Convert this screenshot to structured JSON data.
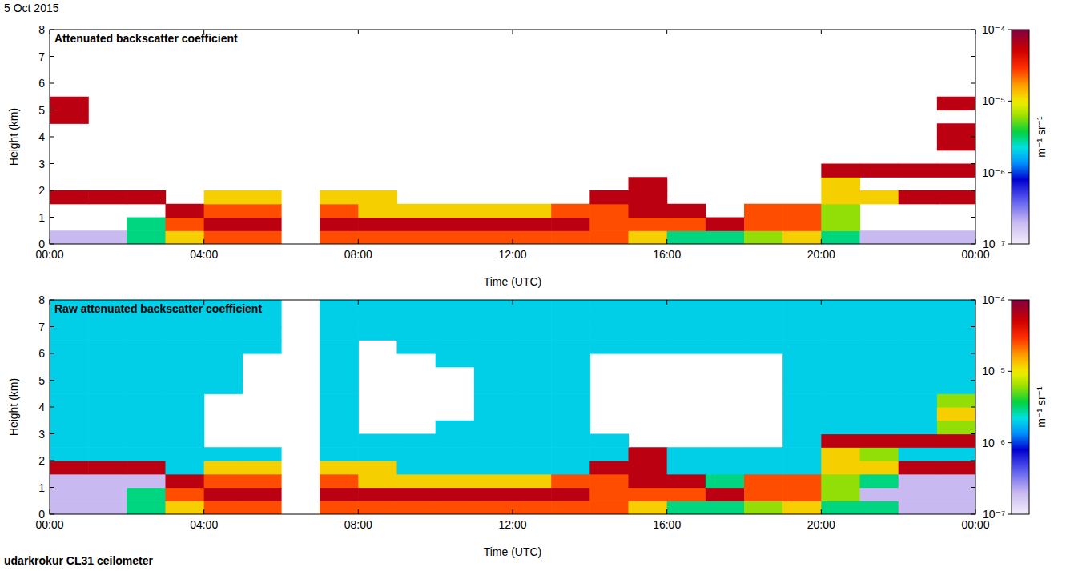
{
  "date": "5 Oct 2015",
  "station": "udarkrokur CL31 ceilometer",
  "chart_data": [
    {
      "type": "heatmap",
      "title": "Attenuated backscatter coefficient",
      "xlabel": "Time (UTC)",
      "ylabel": "Height (km)",
      "xlim": [
        0,
        24
      ],
      "xticks": [
        {
          "value": 0,
          "label": "00:00"
        },
        {
          "value": 4,
          "label": "04:00"
        },
        {
          "value": 8,
          "label": "08:00"
        },
        {
          "value": 12,
          "label": "12:00"
        },
        {
          "value": 16,
          "label": "16:00"
        },
        {
          "value": 20,
          "label": "20:00"
        },
        {
          "value": 24,
          "label": "00:00"
        }
      ],
      "ylim": [
        0,
        8
      ],
      "yticks": [
        0,
        1,
        2,
        3,
        4,
        5,
        6,
        7,
        8
      ],
      "colorbar": {
        "label": "m⁻¹ sr⁻¹",
        "log": true,
        "lim": [
          1e-07,
          0.0001
        ],
        "ticks": [
          {
            "value": 1e-07,
            "label": "10⁻⁷"
          },
          {
            "value": 1e-06,
            "label": "10⁻⁶"
          },
          {
            "value": 1e-05,
            "label": "10⁻⁵"
          },
          {
            "value": 0.0001,
            "label": "10⁻⁴"
          }
        ]
      },
      "x_bins": [
        0,
        1,
        2,
        3,
        4,
        5,
        6,
        7,
        8,
        9,
        10,
        11,
        12,
        13,
        14,
        15,
        16,
        17,
        18,
        19,
        20,
        21,
        22,
        23,
        24
      ],
      "y_bins": [
        0,
        0.5,
        1,
        1.5,
        2,
        2.5,
        3,
        3.5,
        4,
        4.5,
        5,
        5.5,
        6,
        6.5,
        7,
        7.5,
        8
      ],
      "cells": [
        [
          2e-07,
          2e-07,
          3e-06,
          1.2e-05,
          2.5e-05,
          2.5e-05,
          null,
          2.5e-05,
          2.5e-05,
          2.5e-05,
          2.5e-05,
          2.5e-05,
          2.5e-05,
          2.5e-05,
          2.5e-05,
          1.2e-05,
          3e-06,
          3e-06,
          6e-06,
          1.2e-05,
          3e-06,
          2e-07,
          2e-07,
          2e-07
        ],
        [
          null,
          null,
          3e-06,
          2.5e-05,
          6e-05,
          6e-05,
          null,
          6e-05,
          6e-05,
          6e-05,
          6e-05,
          6e-05,
          6e-05,
          6e-05,
          2.5e-05,
          2.5e-05,
          2.5e-05,
          6e-05,
          2.5e-05,
          2.5e-05,
          6e-06,
          null,
          null,
          null
        ],
        [
          null,
          null,
          null,
          6e-05,
          2.5e-05,
          2.5e-05,
          null,
          2.5e-05,
          1.2e-05,
          1.2e-05,
          1.2e-05,
          1.2e-05,
          1.2e-05,
          2.5e-05,
          2.5e-05,
          6e-05,
          6e-05,
          null,
          2.5e-05,
          2.5e-05,
          6e-06,
          null,
          null,
          null
        ],
        [
          6e-05,
          6e-05,
          6e-05,
          null,
          1.2e-05,
          1.2e-05,
          null,
          1.2e-05,
          1.2e-05,
          null,
          null,
          null,
          null,
          null,
          6e-05,
          6e-05,
          null,
          null,
          null,
          null,
          1.2e-05,
          1.2e-05,
          6e-05,
          6e-05
        ],
        [
          null,
          null,
          null,
          null,
          null,
          null,
          null,
          null,
          null,
          null,
          null,
          null,
          null,
          null,
          null,
          6e-05,
          null,
          null,
          null,
          null,
          1.2e-05,
          null,
          null,
          null
        ],
        [
          null,
          null,
          null,
          null,
          null,
          null,
          null,
          null,
          null,
          null,
          null,
          null,
          null,
          null,
          null,
          null,
          null,
          null,
          null,
          null,
          6e-05,
          6e-05,
          6e-05,
          6e-05
        ],
        [
          null,
          null,
          null,
          null,
          null,
          null,
          null,
          null,
          null,
          null,
          null,
          null,
          null,
          null,
          null,
          null,
          null,
          null,
          null,
          null,
          null,
          null,
          null,
          null
        ],
        [
          null,
          null,
          null,
          null,
          null,
          null,
          null,
          null,
          null,
          null,
          null,
          null,
          null,
          null,
          null,
          null,
          null,
          null,
          null,
          null,
          null,
          null,
          null,
          6e-05
        ],
        [
          null,
          null,
          null,
          null,
          null,
          null,
          null,
          null,
          null,
          null,
          null,
          null,
          null,
          null,
          null,
          null,
          null,
          null,
          null,
          null,
          null,
          null,
          null,
          6e-05
        ],
        [
          6e-05,
          null,
          null,
          null,
          null,
          null,
          null,
          null,
          null,
          null,
          null,
          null,
          null,
          null,
          null,
          null,
          null,
          null,
          null,
          null,
          null,
          null,
          null,
          null
        ],
        [
          6e-05,
          null,
          null,
          null,
          null,
          null,
          null,
          null,
          null,
          null,
          null,
          null,
          null,
          null,
          null,
          null,
          null,
          null,
          null,
          null,
          null,
          null,
          null,
          6e-05
        ],
        [
          null,
          null,
          null,
          null,
          null,
          null,
          null,
          null,
          null,
          null,
          null,
          null,
          null,
          null,
          null,
          null,
          null,
          null,
          null,
          null,
          null,
          null,
          null,
          null
        ],
        [
          null,
          null,
          null,
          null,
          null,
          null,
          null,
          null,
          null,
          null,
          null,
          null,
          null,
          null,
          null,
          null,
          null,
          null,
          null,
          null,
          null,
          null,
          null,
          null
        ],
        [
          null,
          null,
          null,
          null,
          null,
          null,
          null,
          null,
          null,
          null,
          null,
          null,
          null,
          null,
          null,
          null,
          null,
          null,
          null,
          null,
          null,
          null,
          null,
          null
        ],
        [
          null,
          null,
          null,
          null,
          null,
          null,
          null,
          null,
          null,
          null,
          null,
          null,
          null,
          null,
          null,
          null,
          null,
          null,
          null,
          null,
          null,
          null,
          null,
          null
        ],
        [
          null,
          null,
          null,
          null,
          null,
          null,
          null,
          null,
          null,
          null,
          null,
          null,
          null,
          null,
          null,
          null,
          null,
          null,
          null,
          null,
          null,
          null,
          null,
          null
        ]
      ]
    },
    {
      "type": "heatmap",
      "title": "Raw attenuated backscatter coefficient",
      "xlabel": "Time (UTC)",
      "ylabel": "Height (km)",
      "xlim": [
        0,
        24
      ],
      "xticks": [
        {
          "value": 0,
          "label": "00:00"
        },
        {
          "value": 4,
          "label": "04:00"
        },
        {
          "value": 8,
          "label": "08:00"
        },
        {
          "value": 12,
          "label": "12:00"
        },
        {
          "value": 16,
          "label": "16:00"
        },
        {
          "value": 20,
          "label": "20:00"
        },
        {
          "value": 24,
          "label": "00:00"
        }
      ],
      "ylim": [
        0,
        8
      ],
      "yticks": [
        0,
        1,
        2,
        3,
        4,
        5,
        6,
        7,
        8
      ],
      "colorbar": {
        "label": "m⁻¹ sr⁻¹",
        "log": true,
        "lim": [
          1e-07,
          0.0001
        ],
        "ticks": [
          {
            "value": 1e-07,
            "label": "10⁻⁷"
          },
          {
            "value": 1e-06,
            "label": "10⁻⁶"
          },
          {
            "value": 1e-05,
            "label": "10⁻⁵"
          },
          {
            "value": 0.0001,
            "label": "10⁻⁴"
          }
        ]
      },
      "x_bins": [
        0,
        1,
        2,
        3,
        4,
        5,
        6,
        7,
        8,
        9,
        10,
        11,
        12,
        13,
        14,
        15,
        16,
        17,
        18,
        19,
        20,
        21,
        22,
        23,
        24
      ],
      "y_bins": [
        0,
        0.5,
        1,
        1.5,
        2,
        2.5,
        3,
        3.5,
        4,
        4.5,
        5,
        5.5,
        6,
        6.5,
        7,
        7.5,
        8
      ],
      "cells": [
        [
          2e-07,
          2e-07,
          3e-06,
          1.2e-05,
          2.5e-05,
          2.5e-05,
          null,
          2.5e-05,
          2.5e-05,
          2.5e-05,
          2.5e-05,
          2.5e-05,
          2.5e-05,
          2.5e-05,
          2.5e-05,
          1.2e-05,
          3e-06,
          3e-06,
          6e-06,
          1.2e-05,
          3e-06,
          3e-06,
          2e-07,
          2e-07
        ],
        [
          2e-07,
          2e-07,
          3e-06,
          2.5e-05,
          6e-05,
          6e-05,
          null,
          6e-05,
          6e-05,
          6e-05,
          6e-05,
          6e-05,
          6e-05,
          6e-05,
          2.5e-05,
          2.5e-05,
          2.5e-05,
          6e-05,
          2.5e-05,
          2.5e-05,
          6e-06,
          2e-07,
          2e-07,
          2e-07
        ],
        [
          2e-07,
          2e-07,
          2e-07,
          6e-05,
          2.5e-05,
          2.5e-05,
          null,
          2.5e-05,
          1.2e-05,
          1.2e-05,
          1.2e-05,
          1.2e-05,
          1.2e-05,
          2.5e-05,
          2.5e-05,
          6e-05,
          6e-05,
          3e-06,
          2.5e-05,
          2.5e-05,
          6e-06,
          3e-06,
          2e-07,
          2e-07
        ],
        [
          6e-05,
          6e-05,
          6e-05,
          2e-06,
          1.2e-05,
          1.2e-05,
          null,
          1.2e-05,
          1.2e-05,
          2e-06,
          2e-06,
          2e-06,
          2e-06,
          2e-06,
          6e-05,
          6e-05,
          2e-06,
          2e-06,
          2e-06,
          2e-06,
          1.2e-05,
          1.2e-05,
          6e-05,
          6e-05
        ],
        [
          2e-06,
          2e-06,
          2e-06,
          2e-06,
          2e-06,
          2e-06,
          null,
          2e-06,
          2e-06,
          2e-06,
          2e-06,
          2e-06,
          2e-06,
          2e-06,
          2e-06,
          6e-05,
          2e-06,
          2e-06,
          2e-06,
          2e-06,
          1.2e-05,
          6e-06,
          2e-06,
          2e-06
        ],
        [
          2e-06,
          2e-06,
          2e-06,
          2e-06,
          null,
          null,
          null,
          2e-06,
          2e-06,
          2e-06,
          2e-06,
          2e-06,
          2e-06,
          2e-06,
          2e-06,
          null,
          null,
          null,
          null,
          2e-06,
          6e-05,
          6e-05,
          6e-05,
          6e-05
        ],
        [
          2e-06,
          2e-06,
          2e-06,
          2e-06,
          null,
          null,
          null,
          2e-06,
          null,
          null,
          2e-06,
          2e-06,
          2e-06,
          2e-06,
          null,
          null,
          null,
          null,
          null,
          2e-06,
          2e-06,
          2e-06,
          2e-06,
          6e-06
        ],
        [
          2e-06,
          2e-06,
          2e-06,
          2e-06,
          null,
          null,
          null,
          2e-06,
          null,
          null,
          null,
          2e-06,
          2e-06,
          2e-06,
          null,
          null,
          null,
          null,
          null,
          2e-06,
          2e-06,
          2e-06,
          2e-06,
          1.2e-05
        ],
        [
          2e-06,
          2e-06,
          2e-06,
          2e-06,
          null,
          null,
          null,
          2e-06,
          null,
          null,
          null,
          2e-06,
          2e-06,
          2e-06,
          null,
          null,
          null,
          null,
          null,
          2e-06,
          2e-06,
          2e-06,
          2e-06,
          6e-06
        ],
        [
          2e-06,
          2e-06,
          2e-06,
          2e-06,
          2e-06,
          null,
          null,
          2e-06,
          null,
          null,
          null,
          2e-06,
          2e-06,
          2e-06,
          null,
          null,
          null,
          null,
          null,
          2e-06,
          2e-06,
          2e-06,
          2e-06,
          2e-06
        ],
        [
          2e-06,
          2e-06,
          2e-06,
          2e-06,
          2e-06,
          null,
          null,
          2e-06,
          null,
          null,
          null,
          2e-06,
          2e-06,
          2e-06,
          null,
          null,
          null,
          null,
          null,
          2e-06,
          2e-06,
          2e-06,
          2e-06,
          2e-06
        ],
        [
          2e-06,
          2e-06,
          2e-06,
          2e-06,
          2e-06,
          null,
          null,
          2e-06,
          null,
          null,
          2e-06,
          2e-06,
          2e-06,
          2e-06,
          null,
          null,
          null,
          null,
          null,
          2e-06,
          2e-06,
          2e-06,
          2e-06,
          2e-06
        ],
        [
          2e-06,
          2e-06,
          2e-06,
          2e-06,
          2e-06,
          2e-06,
          null,
          2e-06,
          null,
          2e-06,
          2e-06,
          2e-06,
          2e-06,
          2e-06,
          2e-06,
          2e-06,
          2e-06,
          2e-06,
          2e-06,
          2e-06,
          2e-06,
          2e-06,
          2e-06,
          2e-06
        ],
        [
          2e-06,
          2e-06,
          2e-06,
          2e-06,
          2e-06,
          2e-06,
          null,
          2e-06,
          2e-06,
          2e-06,
          2e-06,
          2e-06,
          2e-06,
          2e-06,
          2e-06,
          2e-06,
          2e-06,
          2e-06,
          2e-06,
          2e-06,
          2e-06,
          2e-06,
          2e-06,
          2e-06
        ],
        [
          2e-06,
          2e-06,
          2e-06,
          2e-06,
          2e-06,
          2e-06,
          null,
          2e-06,
          2e-06,
          2e-06,
          2e-06,
          2e-06,
          2e-06,
          2e-06,
          2e-06,
          2e-06,
          2e-06,
          2e-06,
          2e-06,
          2e-06,
          2e-06,
          2e-06,
          2e-06,
          2e-06
        ],
        [
          2e-06,
          2e-06,
          2e-06,
          2e-06,
          2e-06,
          2e-06,
          null,
          2e-06,
          2e-06,
          2e-06,
          2e-06,
          2e-06,
          2e-06,
          2e-06,
          2e-06,
          2e-06,
          2e-06,
          2e-06,
          2e-06,
          2e-06,
          2e-06,
          2e-06,
          2e-06,
          2e-06
        ]
      ]
    }
  ]
}
